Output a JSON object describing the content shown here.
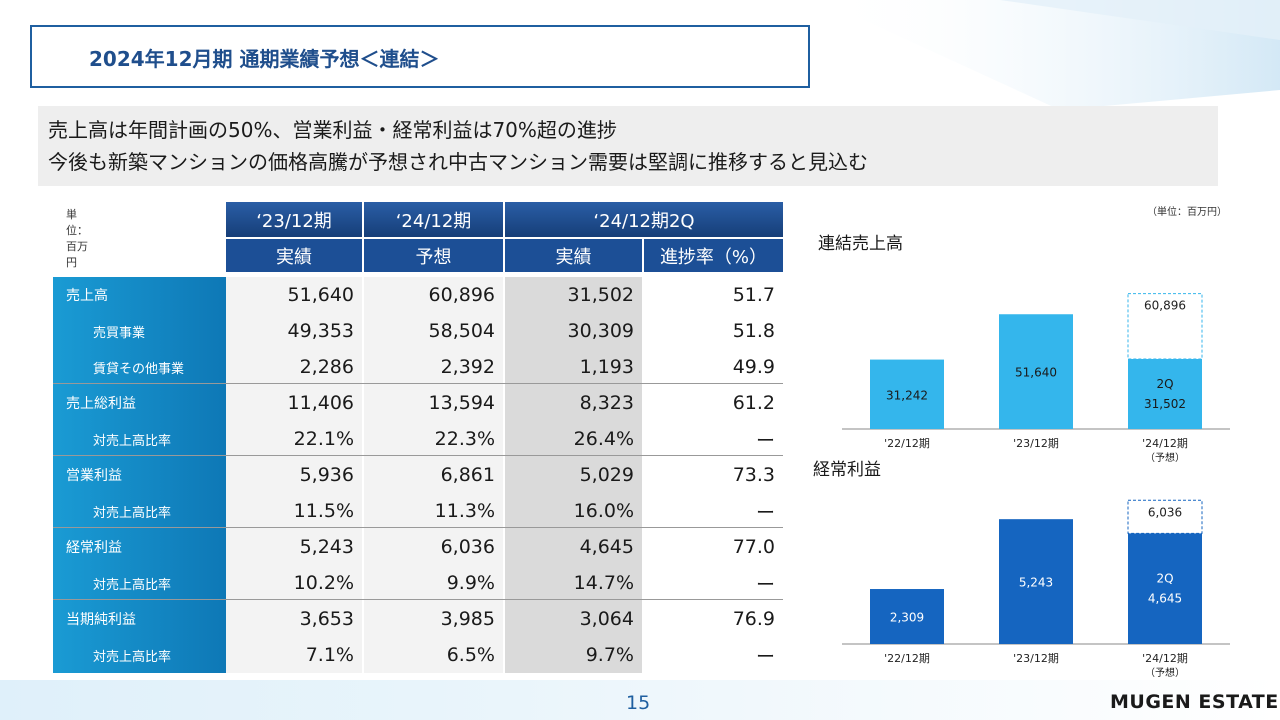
{
  "title": "2024年12月期 通期業績予想＜連結＞",
  "summary": {
    "line1": "売上高は年間計画の50%、営業利益・経常利益は70%超の進捗",
    "line2": "今後も新築マンションの価格高騰が予想され中古マンション需要は堅調に推移すると見込む"
  },
  "table": {
    "unit": "単位：百万円",
    "periods": [
      "‘23/12期",
      "‘24/12期",
      "‘24/12期2Q"
    ],
    "subheaders": [
      "実績",
      "予想",
      "実績",
      "進捗率（%）"
    ],
    "rows": [
      {
        "label": "売上高",
        "values": [
          "51,640",
          "60,896",
          "31,502",
          "51.7"
        ]
      },
      {
        "label": "売買事業",
        "values": [
          "49,353",
          "58,504",
          "30,309",
          "51.8"
        ]
      },
      {
        "label": "賃貸その他事業",
        "values": [
          "2,286",
          "2,392",
          "1,193",
          "49.9"
        ]
      },
      {
        "label": "売上総利益",
        "values": [
          "11,406",
          "13,594",
          "8,323",
          "61.2"
        ]
      },
      {
        "label": "対売上高比率",
        "values": [
          "22.1%",
          "22.3%",
          "26.4%",
          "ー"
        ]
      },
      {
        "label": "営業利益",
        "values": [
          "5,936",
          "6,861",
          "5,029",
          "73.3"
        ]
      },
      {
        "label": "対売上高比率",
        "values": [
          "11.5%",
          "11.3%",
          "16.0%",
          "ー"
        ]
      },
      {
        "label": "経常利益",
        "values": [
          "5,243",
          "6,036",
          "4,645",
          "77.0"
        ]
      },
      {
        "label": "対売上高比率",
        "values": [
          "10.2%",
          "9.9%",
          "14.7%",
          "ー"
        ]
      },
      {
        "label": "当期純利益",
        "values": [
          "3,653",
          "3,985",
          "3,064",
          "76.9"
        ]
      },
      {
        "label": "対売上高比率",
        "values": [
          "7.1%",
          "6.5%",
          "9.7%",
          "ー"
        ]
      }
    ]
  },
  "chart_unit": "（単位：百万円）",
  "chart_data": [
    {
      "type": "bar",
      "title": "連結売上高",
      "categories": [
        "'22/12期",
        "'23/12期",
        "'24/12期"
      ],
      "category_note": "（予想）",
      "values": [
        31242,
        51640,
        31502
      ],
      "value_labels": [
        "31,242",
        "51,640",
        "31,502"
      ],
      "forecast": 60896,
      "forecast_label": "60,896",
      "partial_label": "2Q",
      "color": "#34b6ec",
      "ylim": [
        0,
        63000
      ]
    },
    {
      "type": "bar",
      "title": "経常利益",
      "categories": [
        "'22/12期",
        "'23/12期",
        "'24/12期"
      ],
      "category_note": "（予想）",
      "values": [
        2309,
        5243,
        4645
      ],
      "value_labels": [
        "2,309",
        "5,243",
        "4,645"
      ],
      "forecast": 6036,
      "forecast_label": "6,036",
      "partial_label": "2Q",
      "color": "#1565c0",
      "ylim": [
        0,
        6300
      ]
    }
  ],
  "page_number": "15",
  "brand": "MUGEN ESTATE",
  "colors": {
    "accent": "#1f5fa0",
    "header": "#1c4f96",
    "row_label": "#1a9bd4",
    "bar_sales": "#34b6ec",
    "bar_profit": "#1565c0"
  }
}
